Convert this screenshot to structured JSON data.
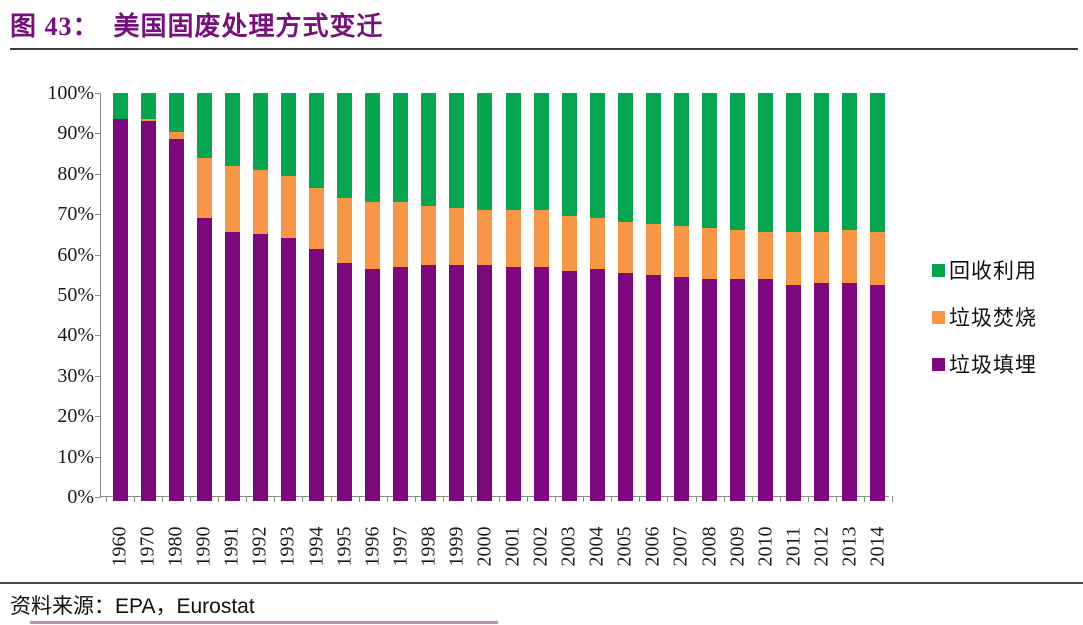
{
  "title": {
    "figure_label": "图 43：",
    "text": "美国固废处理方式变迁"
  },
  "source_line": "资料来源：EPA，Eurostat",
  "colors": {
    "title_purple": "#76117C",
    "recycling_green": "#06A550",
    "incineration_orange": "#F79646",
    "landfill_purple": "#7D077D",
    "axis_gray": "#8a8a8a"
  },
  "legend": [
    {
      "key": "recycling",
      "label": "回收利用",
      "color": "#06A550"
    },
    {
      "key": "incineration",
      "label": "垃圾焚烧",
      "color": "#F79646"
    },
    {
      "key": "landfill",
      "label": "垃圾填埋",
      "color": "#7D077D"
    }
  ],
  "chart_data": {
    "type": "bar",
    "stacked": true,
    "title": "美国固废处理方式变迁",
    "xlabel": "",
    "ylabel": "",
    "ylim": [
      0,
      100
    ],
    "grid": false,
    "legend_position": "right",
    "y_ticks": [
      "100%",
      "90%",
      "80%",
      "70%",
      "60%",
      "50%",
      "40%",
      "30%",
      "20%",
      "10%",
      "0%"
    ],
    "categories": [
      "1960",
      "1970",
      "1980",
      "1990",
      "1991",
      "1992",
      "1993",
      "1994",
      "1995",
      "1996",
      "1997",
      "1998",
      "1999",
      "2000",
      "2001",
      "2002",
      "2003",
      "2004",
      "2005",
      "2006",
      "2007",
      "2008",
      "2009",
      "2010",
      "2011",
      "2012",
      "2013",
      "2014"
    ],
    "series": [
      {
        "key": "landfill",
        "name": "垃圾填埋",
        "color": "#7D077D",
        "values": [
          93.6,
          93.0,
          88.6,
          69.0,
          65.5,
          65.0,
          64.0,
          61.5,
          58.0,
          56.5,
          57.0,
          57.5,
          57.5,
          57.5,
          57.0,
          57.0,
          56.0,
          56.5,
          55.5,
          55.0,
          54.5,
          54.0,
          54.0,
          54.0,
          52.5,
          53.0,
          53.0,
          52.5
        ]
      },
      {
        "key": "incineration",
        "name": "垃圾焚烧",
        "color": "#F79646",
        "values": [
          0.0,
          0.5,
          1.8,
          15.0,
          16.5,
          16.0,
          15.5,
          15.0,
          16.0,
          16.5,
          16.0,
          14.5,
          14.0,
          13.5,
          14.0,
          14.0,
          13.5,
          12.5,
          12.5,
          12.5,
          12.5,
          12.5,
          12.0,
          11.5,
          13.0,
          12.5,
          13.0,
          13.0
        ]
      },
      {
        "key": "recycling",
        "name": "回收利用",
        "color": "#06A550",
        "values": [
          6.4,
          6.5,
          9.6,
          16.0,
          18.0,
          19.0,
          20.5,
          23.5,
          26.0,
          27.0,
          27.0,
          28.0,
          28.5,
          29.0,
          29.0,
          29.0,
          30.5,
          31.0,
          32.0,
          32.5,
          33.0,
          33.5,
          34.0,
          34.5,
          34.5,
          34.5,
          34.0,
          34.5
        ]
      }
    ]
  }
}
